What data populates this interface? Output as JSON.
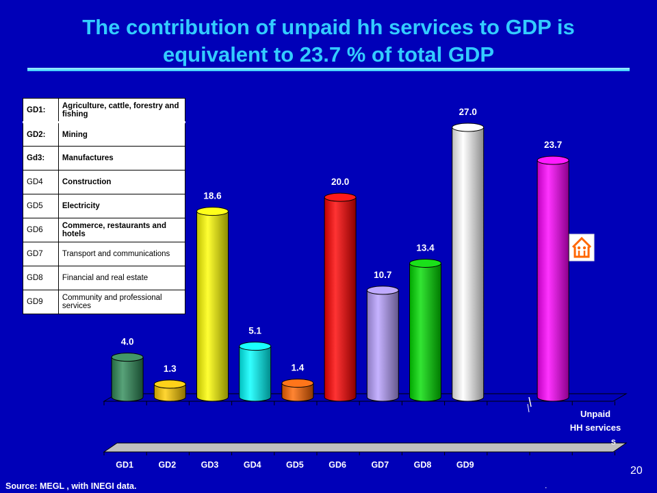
{
  "title": "The contribution of unpaid hh services to GDP is equivalent to 23.7 % of total GDP",
  "legend": [
    {
      "code": "GD1:",
      "desc": "Agriculture, cattle, forestry and fishing",
      "bold": true
    },
    {
      "code": "GD2:",
      "desc": "Mining",
      "bold": true
    },
    {
      "code": "Gd3:",
      "desc": "Manufactures",
      "bold": true
    },
    {
      "code": "GD4",
      "desc": "Construction",
      "bold": false,
      "descBold": true
    },
    {
      "code": "GD5",
      "desc": "Electricity",
      "bold": false,
      "descBold": true
    },
    {
      "code": "GD6",
      "desc": "Commerce, restaurants and hotels",
      "bold": false,
      "descBold": true
    },
    {
      "code": "GD7",
      "desc": "Transport and communications",
      "bold": false,
      "descBold": false
    },
    {
      "code": "GD8",
      "desc": "Financial and real estate",
      "bold": false,
      "descBold": false
    },
    {
      "code": "GD9",
      "desc": "Community and professional services",
      "bold": false,
      "descBold": false
    }
  ],
  "chart_data": {
    "type": "bar",
    "categories": [
      "GD1",
      "GD2",
      "GD3",
      "GD4",
      "GD5",
      "GD6",
      "GD7",
      "GD8",
      "GD9",
      "",
      "Unpaid HH services"
    ],
    "values": [
      4.0,
      1.3,
      18.6,
      5.1,
      1.4,
      20.0,
      10.7,
      13.4,
      27.0,
      null,
      23.7
    ],
    "data_labels": [
      "4.0",
      "1.3",
      "18.6",
      "5.1",
      "1.4",
      "20.0",
      "10.7",
      "13.4",
      "27.0",
      "",
      "23.7"
    ],
    "colors": [
      "#2e8b57",
      "#ffcc00",
      "#ffff00",
      "#00ffff",
      "#ff6600",
      "#ff0000",
      "#b8a0ff",
      "#00dd00",
      "#ffffff",
      "",
      "#ff00ff"
    ],
    "unpaid_label_lines": [
      "Unpaid",
      "HH services",
      "s"
    ],
    "title": "",
    "xlabel": "",
    "ylabel": "",
    "ylim": [
      0,
      27
    ],
    "grid": false,
    "legend": "table top-left"
  },
  "icon": "house-people-icon",
  "source": "Source: MEGL , with INEGI data.",
  "page_number": "20",
  "stray_mark": "."
}
